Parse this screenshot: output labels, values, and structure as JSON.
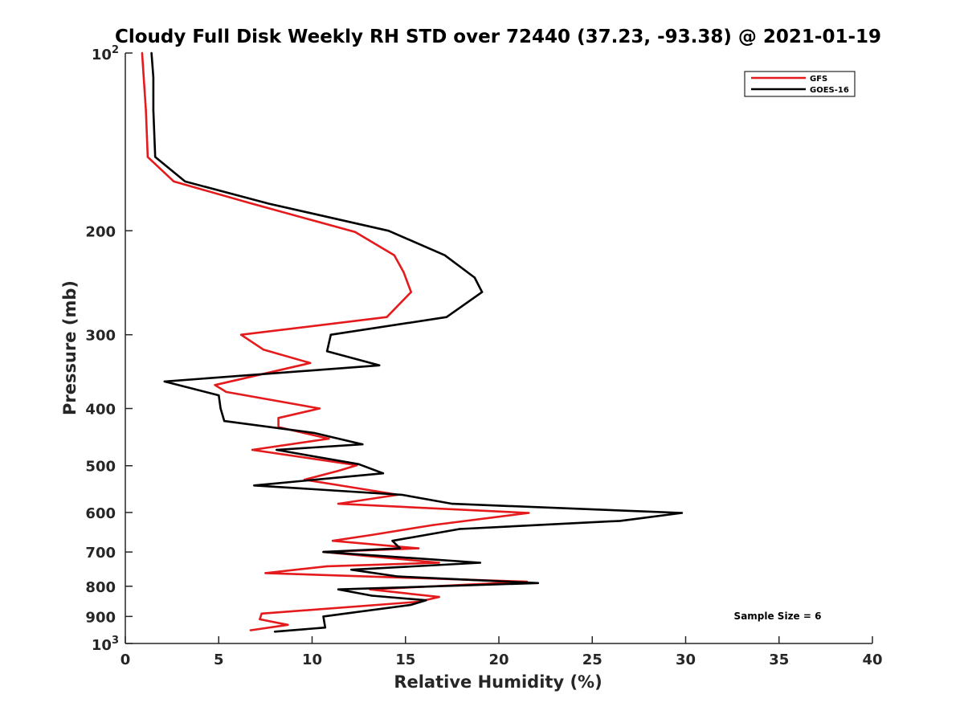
{
  "chart_data": {
    "type": "line",
    "title": "Cloudy Full Disk Weekly RH STD over 72440 (37.23, -93.38) @ 2021-01-19",
    "xlabel": "Relative Humidity (%)",
    "ylabel": "Pressure (mb)",
    "xlim": [
      0,
      40
    ],
    "ylim": [
      100,
      1000
    ],
    "yscale": "log",
    "y_inverted": true,
    "x_ticks": [
      0,
      5,
      10,
      15,
      20,
      25,
      30,
      35,
      40
    ],
    "y_ticks": [
      100,
      200,
      300,
      400,
      500,
      600,
      700,
      800,
      900,
      1000
    ],
    "y_tick_labels": {
      "200": "200",
      "300": "300",
      "400": "400",
      "500": "500",
      "600": "600",
      "700": "700",
      "800": "800",
      "900": "900"
    },
    "y_tick_base": "10",
    "y_tick_exponents": {
      "100": "2",
      "1000": "3"
    },
    "grid": false,
    "legend_position": "top-right",
    "annotation": "Sample Size = 6",
    "series": [
      {
        "name": "GFS",
        "color": "#e41a1c",
        "points": [
          [
            0.9,
            100
          ],
          [
            1.1,
            125
          ],
          [
            1.2,
            150
          ],
          [
            2.6,
            165
          ],
          [
            6.8,
            180
          ],
          [
            12.3,
            201
          ],
          [
            14.4,
            220
          ],
          [
            14.9,
            235
          ],
          [
            15.3,
            254
          ],
          [
            14.0,
            280
          ],
          [
            6.2,
            300
          ],
          [
            7.4,
            318
          ],
          [
            9.9,
            335
          ],
          [
            4.8,
            365
          ],
          [
            5.4,
            375
          ],
          [
            10.4,
            400
          ],
          [
            8.2,
            415
          ],
          [
            8.2,
            430
          ],
          [
            10.9,
            450
          ],
          [
            6.8,
            470
          ],
          [
            12.4,
            499
          ],
          [
            11.4,
            510
          ],
          [
            9.6,
            528
          ],
          [
            14.6,
            560
          ],
          [
            11.4,
            580
          ],
          [
            21.6,
            601
          ],
          [
            16.5,
            630
          ],
          [
            13.2,
            655
          ],
          [
            11.1,
            670
          ],
          [
            15.7,
            690
          ],
          [
            10.6,
            700
          ],
          [
            16.8,
            730
          ],
          [
            10.8,
            740
          ],
          [
            7.5,
            760
          ],
          [
            21.5,
            786
          ],
          [
            13.1,
            810
          ],
          [
            16.8,
            834
          ],
          [
            15.7,
            850
          ],
          [
            7.3,
            890
          ],
          [
            7.2,
            910
          ],
          [
            8.7,
            930
          ],
          [
            6.7,
            950
          ]
        ]
      },
      {
        "name": "GOES-16",
        "color": "#000000",
        "points": [
          [
            1.4,
            100
          ],
          [
            1.5,
            110
          ],
          [
            1.5,
            125
          ],
          [
            1.6,
            150
          ],
          [
            3.2,
            165
          ],
          [
            7.7,
            180
          ],
          [
            14.1,
            200
          ],
          [
            17.1,
            220
          ],
          [
            18.7,
            240
          ],
          [
            19.1,
            254
          ],
          [
            17.2,
            280
          ],
          [
            11.0,
            300
          ],
          [
            10.8,
            320
          ],
          [
            13.6,
            338
          ],
          [
            2.1,
            360
          ],
          [
            5.0,
            380
          ],
          [
            5.1,
            400
          ],
          [
            5.3,
            420
          ],
          [
            10.1,
            440
          ],
          [
            12.7,
            460
          ],
          [
            8.1,
            470
          ],
          [
            12.5,
            497
          ],
          [
            13.8,
            515
          ],
          [
            6.9,
            540
          ],
          [
            14.8,
            560
          ],
          [
            17.5,
            580
          ],
          [
            29.8,
            601
          ],
          [
            26.5,
            620
          ],
          [
            17.9,
            640
          ],
          [
            14.3,
            670
          ],
          [
            14.7,
            690
          ],
          [
            10.6,
            700
          ],
          [
            19.0,
            730
          ],
          [
            12.1,
            750
          ],
          [
            14.6,
            770
          ],
          [
            22.1,
            790
          ],
          [
            11.4,
            810
          ],
          [
            13.2,
            830
          ],
          [
            16.1,
            845
          ],
          [
            15.3,
            860
          ],
          [
            10.6,
            900
          ],
          [
            10.7,
            940
          ],
          [
            8.0,
            955
          ]
        ]
      }
    ]
  }
}
